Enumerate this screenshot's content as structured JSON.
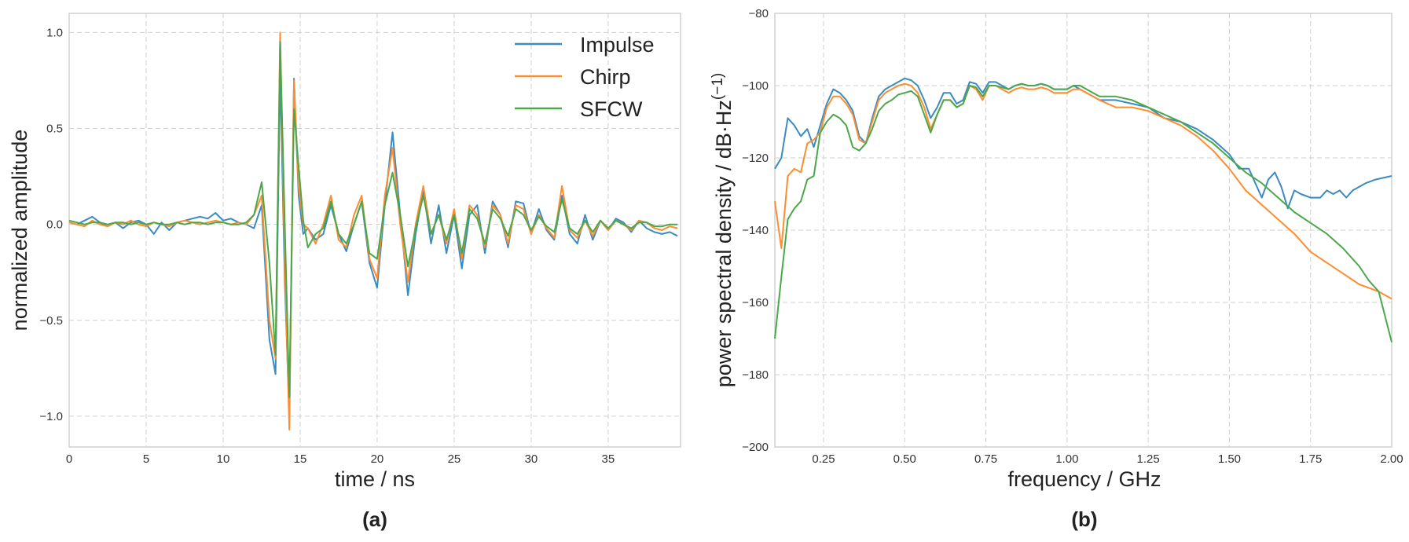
{
  "colors": {
    "Impulse": "#3b8bc2",
    "Chirp": "#ff8c2e",
    "SFCW": "#4aa84a"
  },
  "chart_data": [
    {
      "type": "line",
      "panel_label": "(a)",
      "xlabel": "time / ns",
      "ylabel": "normalized amplitude",
      "xlim": [
        0,
        39.7
      ],
      "ylim": [
        -1.16,
        1.1
      ],
      "xticks": [
        0,
        5,
        10,
        15,
        20,
        25,
        30,
        35
      ],
      "yticks": [
        -1.0,
        -0.5,
        0.0,
        0.5,
        1.0
      ],
      "ytick_labels": [
        "−1.0",
        "−0.5",
        "0.0",
        "0.5",
        "1.0"
      ],
      "grid": true,
      "legend": {
        "location": "upper right",
        "entries": [
          "Impulse",
          "Chirp",
          "SFCW"
        ]
      },
      "series": [
        {
          "name": "Impulse",
          "x": [
            0,
            0.5,
            1,
            1.5,
            2,
            2.5,
            3,
            3.5,
            4,
            4.5,
            5,
            5.5,
            6,
            6.5,
            7,
            7.5,
            8,
            8.5,
            9,
            9.5,
            10,
            10.5,
            11,
            11.5,
            12,
            12.5,
            13,
            13.4,
            13.7,
            14.0,
            14.3,
            14.6,
            14.9,
            15.2,
            15.5,
            16,
            16.5,
            17,
            17.5,
            18,
            18.5,
            19,
            19.5,
            20,
            20.5,
            21,
            21.5,
            22,
            22.5,
            23,
            23.5,
            24,
            24.5,
            25,
            25.5,
            26,
            26.5,
            27,
            27.5,
            28,
            28.5,
            29,
            29.5,
            30,
            30.5,
            31,
            31.5,
            32,
            32.5,
            33,
            33.5,
            34,
            34.5,
            35,
            35.5,
            36,
            36.5,
            37,
            37.5,
            38,
            38.5,
            39,
            39.5
          ],
          "y": [
            0.01,
            0,
            0.02,
            0.04,
            0.01,
            -0.01,
            0.01,
            -0.02,
            0.01,
            0.02,
            0,
            -0.05,
            0.01,
            -0.03,
            0.01,
            0.02,
            0.03,
            0.04,
            0.03,
            0.06,
            0.02,
            0.03,
            0.01,
            0,
            -0.02,
            0.1,
            -0.6,
            -0.78,
            0.8,
            -0.3,
            -1.0,
            0.76,
            0.15,
            -0.05,
            -0.02,
            -0.08,
            -0.05,
            0.1,
            -0.05,
            -0.14,
            0.0,
            0.12,
            -0.2,
            -0.33,
            0.1,
            0.48,
            0.05,
            -0.37,
            -0.05,
            0.18,
            -0.1,
            0.1,
            -0.15,
            0.05,
            -0.23,
            0.05,
            0.1,
            -0.15,
            0.12,
            0.05,
            -0.12,
            0.12,
            0.11,
            -0.05,
            0.08,
            -0.03,
            -0.08,
            0.15,
            -0.05,
            -0.1,
            0.05,
            -0.08,
            0.02,
            -0.03,
            0.03,
            0.01,
            -0.04,
            0.02,
            -0.02,
            -0.04,
            -0.05,
            -0.04,
            -0.06
          ]
        },
        {
          "name": "Chirp",
          "x": [
            0,
            0.5,
            1,
            1.5,
            2,
            2.5,
            3,
            3.5,
            4,
            4.5,
            5,
            5.5,
            6,
            6.5,
            7,
            7.5,
            8,
            8.5,
            9,
            9.5,
            10,
            10.5,
            11,
            11.5,
            12,
            12.5,
            13,
            13.4,
            13.7,
            14.0,
            14.3,
            14.6,
            14.9,
            15.2,
            15.5,
            16,
            16.5,
            17,
            17.5,
            18,
            18.5,
            19,
            19.5,
            20,
            20.5,
            21,
            21.5,
            22,
            22.5,
            23,
            23.5,
            24,
            24.5,
            25,
            25.5,
            26,
            26.5,
            27,
            27.5,
            28,
            28.5,
            29,
            29.5,
            30,
            30.5,
            31,
            31.5,
            32,
            32.5,
            33,
            33.5,
            34,
            34.5,
            35,
            35.5,
            36,
            36.5,
            37,
            37.5,
            38,
            38.5,
            39,
            39.5
          ],
          "y": [
            0.01,
            0,
            -0.01,
            0.02,
            0,
            -0.01,
            0.01,
            0,
            0.02,
            0,
            -0.01,
            0.01,
            0,
            -0.01,
            0.01,
            0.02,
            0.01,
            0,
            0.01,
            0.02,
            0.01,
            0,
            0.01,
            0,
            0.05,
            0.15,
            -0.5,
            -0.7,
            1.0,
            -0.2,
            -1.07,
            0.75,
            0.2,
            0.0,
            -0.02,
            -0.1,
            0.0,
            0.15,
            -0.08,
            -0.12,
            0.05,
            0.15,
            -0.18,
            -0.28,
            0.15,
            0.4,
            0.0,
            -0.3,
            0.0,
            0.2,
            -0.05,
            0.05,
            -0.1,
            0.08,
            -0.18,
            0.1,
            0.05,
            -0.12,
            0.1,
            0.05,
            -0.1,
            0.1,
            0.08,
            -0.05,
            0.05,
            -0.02,
            -0.07,
            0.2,
            -0.03,
            -0.07,
            0.02,
            -0.06,
            0.02,
            -0.03,
            0.02,
            0,
            -0.03,
            0.02,
            0.01,
            -0.02,
            -0.03,
            -0.01,
            -0.02
          ]
        },
        {
          "name": "SFCW",
          "x": [
            0,
            0.5,
            1,
            1.5,
            2,
            2.5,
            3,
            3.5,
            4,
            4.5,
            5,
            5.5,
            6,
            6.5,
            7,
            7.5,
            8,
            8.5,
            9,
            9.5,
            10,
            10.5,
            11,
            11.5,
            12,
            12.5,
            13,
            13.4,
            13.7,
            14.0,
            14.3,
            14.6,
            14.9,
            15.2,
            15.5,
            16,
            16.5,
            17,
            17.5,
            18,
            18.5,
            19,
            19.5,
            20,
            20.5,
            21,
            21.5,
            22,
            22.5,
            23,
            23.5,
            24,
            24.5,
            25,
            25.5,
            26,
            26.5,
            27,
            27.5,
            28,
            28.5,
            29,
            29.5,
            30,
            30.5,
            31,
            31.5,
            32,
            32.5,
            33,
            33.5,
            34,
            34.5,
            35,
            35.5,
            36,
            36.5,
            37,
            37.5,
            38,
            38.5,
            39,
            39.5
          ],
          "y": [
            0.02,
            0.01,
            0,
            0.01,
            0.01,
            0,
            0.01,
            0.01,
            0,
            0.01,
            0,
            0.01,
            0,
            0,
            0.01,
            0,
            0.01,
            0.01,
            0,
            0.01,
            0.01,
            0,
            0,
            0.01,
            0.05,
            0.22,
            -0.2,
            -0.68,
            0.95,
            0.0,
            -0.9,
            0.6,
            0.3,
            0.02,
            -0.12,
            -0.05,
            -0.02,
            0.12,
            -0.05,
            -0.1,
            0.0,
            0.12,
            -0.15,
            -0.18,
            0.1,
            0.27,
            0.05,
            -0.22,
            -0.02,
            0.15,
            -0.05,
            0.05,
            -0.08,
            0.05,
            -0.15,
            0.08,
            0.03,
            -0.1,
            0.08,
            0.03,
            -0.06,
            0.08,
            0.05,
            -0.03,
            0.04,
            -0.01,
            -0.04,
            0.13,
            -0.02,
            -0.05,
            0.02,
            -0.04,
            0.02,
            -0.02,
            0.02,
            0,
            -0.02,
            0.01,
            0.01,
            -0.01,
            -0.01,
            0,
            0
          ]
        }
      ]
    },
    {
      "type": "line",
      "panel_label": "(b)",
      "xlabel": "frequency / GHz",
      "ylabel": "power spectral density / dB·Hz",
      "ylabel_superscript": "(−1)",
      "xlim": [
        0.1,
        2.0
      ],
      "ylim": [
        -200,
        -80
      ],
      "xticks": [
        0.25,
        0.5,
        0.75,
        1.0,
        1.25,
        1.5,
        1.75,
        2.0
      ],
      "xtick_labels": [
        "0.25",
        "0.50",
        "0.75",
        "1.00",
        "1.25",
        "1.50",
        "1.75",
        "2.00"
      ],
      "yticks": [
        -200,
        -180,
        -160,
        -140,
        -120,
        -100,
        -80
      ],
      "ytick_labels": [
        "−200",
        "−180",
        "−160",
        "−140",
        "−120",
        "−100",
        "−80"
      ],
      "grid": true,
      "series": [
        {
          "name": "Impulse",
          "x": [
            0.1,
            0.12,
            0.14,
            0.16,
            0.18,
            0.2,
            0.22,
            0.24,
            0.26,
            0.28,
            0.3,
            0.32,
            0.34,
            0.36,
            0.38,
            0.4,
            0.42,
            0.44,
            0.46,
            0.48,
            0.5,
            0.52,
            0.54,
            0.56,
            0.58,
            0.6,
            0.62,
            0.64,
            0.66,
            0.68,
            0.7,
            0.72,
            0.74,
            0.76,
            0.78,
            0.8,
            0.82,
            0.84,
            0.86,
            0.88,
            0.9,
            0.92,
            0.94,
            0.96,
            0.98,
            1.0,
            1.02,
            1.04,
            1.06,
            1.08,
            1.1,
            1.15,
            1.2,
            1.25,
            1.3,
            1.35,
            1.4,
            1.45,
            1.5,
            1.53,
            1.56,
            1.6,
            1.62,
            1.64,
            1.66,
            1.68,
            1.7,
            1.72,
            1.75,
            1.78,
            1.8,
            1.82,
            1.84,
            1.86,
            1.88,
            1.9,
            1.92,
            1.95,
            2.0
          ],
          "y": [
            -123,
            -120,
            -109,
            -111,
            -114,
            -112,
            -117,
            -111,
            -105,
            -101,
            -102,
            -104,
            -107,
            -114,
            -116,
            -109,
            -103,
            -101,
            -100,
            -99,
            -98,
            -98.5,
            -100,
            -104,
            -109,
            -106,
            -102,
            -102,
            -105,
            -104,
            -99,
            -99.5,
            -102,
            -99,
            -99,
            -100,
            -101,
            -100,
            -99.5,
            -100,
            -100,
            -99.5,
            -100,
            -101,
            -101,
            -101,
            -100,
            -101,
            -102,
            -103,
            -104,
            -104,
            -105,
            -106,
            -109,
            -110,
            -112,
            -115,
            -119,
            -123,
            -123,
            -131,
            -126,
            -124,
            -128,
            -134,
            -129,
            -130,
            -131,
            -131,
            -129,
            -130,
            -129,
            -131,
            -129,
            -128,
            -127,
            -126,
            -125
          ]
        },
        {
          "name": "Chirp",
          "x": [
            0.1,
            0.12,
            0.14,
            0.16,
            0.18,
            0.2,
            0.22,
            0.24,
            0.26,
            0.28,
            0.3,
            0.32,
            0.34,
            0.36,
            0.38,
            0.4,
            0.42,
            0.44,
            0.46,
            0.48,
            0.5,
            0.52,
            0.54,
            0.56,
            0.58,
            0.6,
            0.62,
            0.64,
            0.66,
            0.68,
            0.7,
            0.72,
            0.74,
            0.76,
            0.78,
            0.8,
            0.82,
            0.84,
            0.86,
            0.88,
            0.9,
            0.92,
            0.94,
            0.96,
            0.98,
            1.0,
            1.02,
            1.04,
            1.06,
            1.08,
            1.1,
            1.15,
            1.2,
            1.25,
            1.3,
            1.35,
            1.4,
            1.45,
            1.5,
            1.55,
            1.6,
            1.65,
            1.7,
            1.75,
            1.8,
            1.85,
            1.9,
            1.93,
            1.96,
            2.0
          ],
          "y": [
            -132,
            -145,
            -125,
            -123,
            -124,
            -116,
            -115,
            -113,
            -106,
            -103,
            -103,
            -105,
            -108,
            -115,
            -116,
            -110,
            -104,
            -102,
            -101,
            -100,
            -99.5,
            -100,
            -102,
            -106,
            -112,
            -108,
            -104,
            -104,
            -106,
            -105,
            -100,
            -101,
            -104,
            -100,
            -100,
            -101,
            -102,
            -101,
            -100.5,
            -101,
            -101,
            -100.5,
            -101,
            -102,
            -102,
            -102,
            -101,
            -101,
            -102,
            -103,
            -104,
            -106,
            -106,
            -107,
            -109,
            -111,
            -114,
            -118,
            -123,
            -129,
            -133,
            -137,
            -141,
            -146,
            -149,
            -152,
            -155,
            -156,
            -157,
            -159
          ]
        },
        {
          "name": "SFCW",
          "x": [
            0.1,
            0.12,
            0.14,
            0.16,
            0.18,
            0.2,
            0.22,
            0.24,
            0.26,
            0.28,
            0.3,
            0.32,
            0.34,
            0.36,
            0.38,
            0.4,
            0.42,
            0.44,
            0.46,
            0.48,
            0.5,
            0.52,
            0.54,
            0.56,
            0.58,
            0.6,
            0.62,
            0.64,
            0.66,
            0.68,
            0.7,
            0.72,
            0.74,
            0.76,
            0.78,
            0.8,
            0.82,
            0.84,
            0.86,
            0.88,
            0.9,
            0.92,
            0.94,
            0.96,
            0.98,
            1.0,
            1.02,
            1.04,
            1.06,
            1.08,
            1.1,
            1.15,
            1.2,
            1.25,
            1.3,
            1.35,
            1.4,
            1.45,
            1.5,
            1.55,
            1.6,
            1.65,
            1.7,
            1.75,
            1.8,
            1.85,
            1.9,
            1.93,
            1.96,
            2.0
          ],
          "y": [
            -170,
            -153,
            -137,
            -134,
            -132,
            -126,
            -125,
            -113,
            -110,
            -108,
            -109,
            -111,
            -117,
            -118,
            -116,
            -112,
            -107,
            -105,
            -104,
            -102.5,
            -102,
            -101.5,
            -103,
            -108,
            -113,
            -108,
            -104,
            -104,
            -106,
            -105,
            -100,
            -100.5,
            -103,
            -100,
            -100,
            -100.5,
            -101,
            -100,
            -99.5,
            -100,
            -100,
            -99.5,
            -100,
            -101,
            -101,
            -101,
            -100,
            -100,
            -101,
            -102,
            -103,
            -103,
            -104,
            -106,
            -108,
            -110,
            -113,
            -116,
            -120,
            -124,
            -127,
            -131,
            -135,
            -138,
            -141,
            -145,
            -150,
            -154,
            -157,
            -171
          ]
        }
      ]
    }
  ]
}
